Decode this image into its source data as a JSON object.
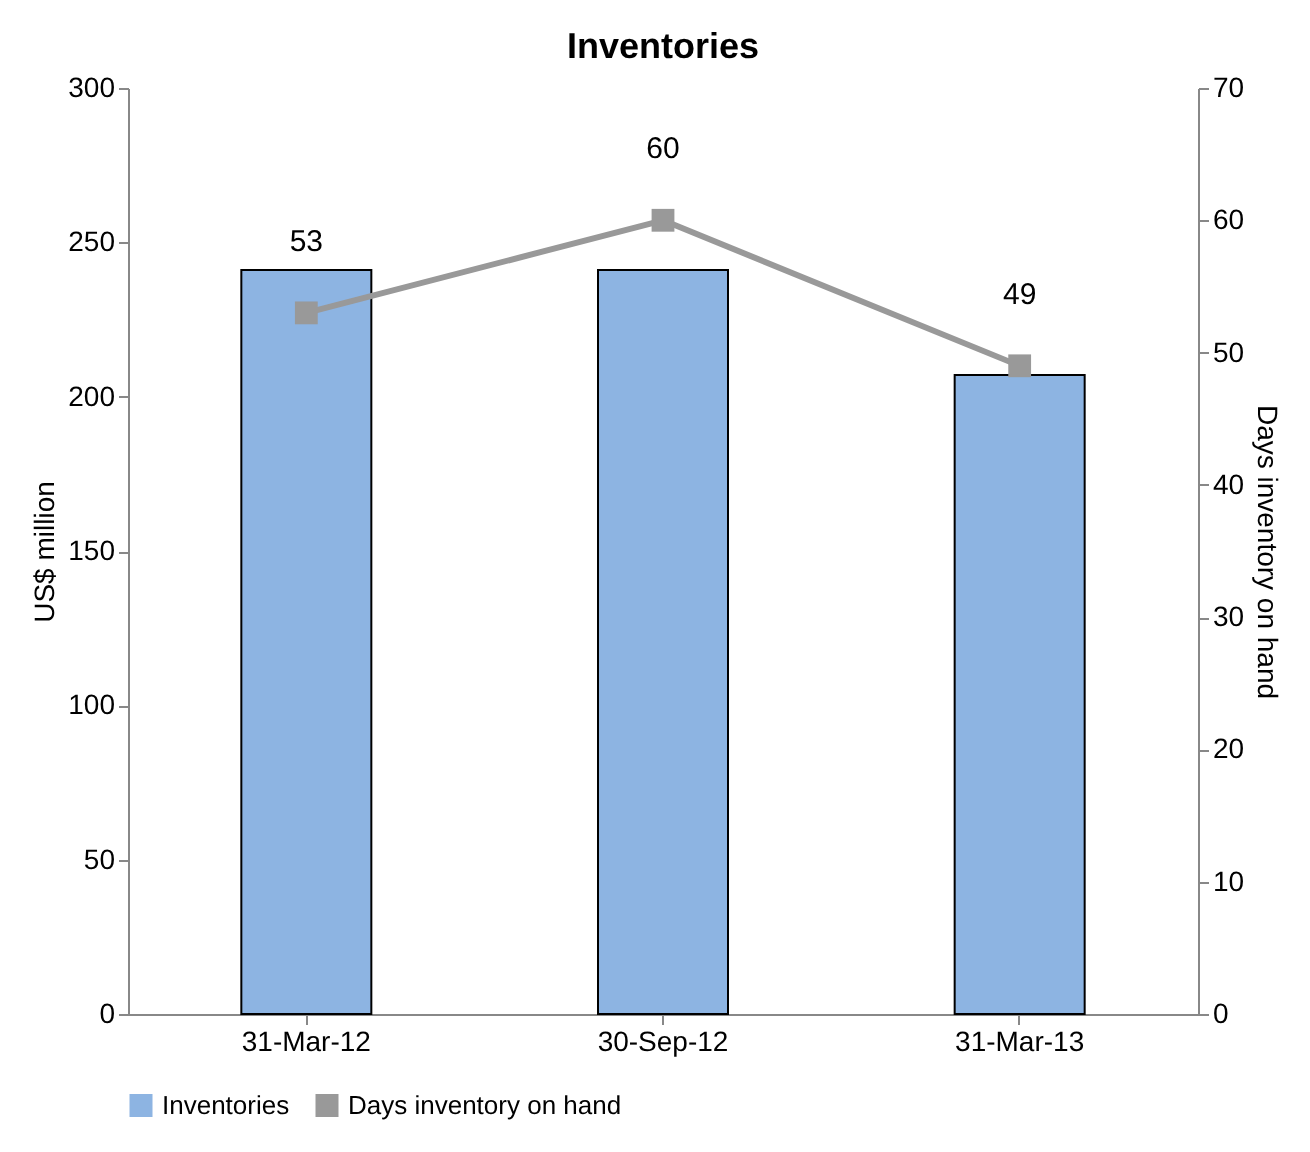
{
  "chart_data": {
    "type": "bar",
    "title": "Inventories",
    "ylabel": "US$ million",
    "y2label": "Days inventory on hand",
    "categories": [
      "31-Mar-12",
      "30-Sep-12",
      "31-Mar-13"
    ],
    "series": [
      {
        "name": "Inventories",
        "color": "#8db4e2",
        "values": [
          241,
          241,
          207
        ]
      },
      {
        "name": "Days inventory on hand",
        "type": "line",
        "axis": "y2",
        "color": "#999999",
        "marker": "square",
        "values": [
          53,
          60,
          49
        ],
        "value_labels": [
          "53",
          "60",
          "49"
        ]
      }
    ],
    "ylim": [
      0,
      300
    ],
    "yticks": [
      0,
      50,
      100,
      150,
      200,
      250,
      300
    ],
    "y2lim": [
      0,
      70
    ],
    "y2ticks": [
      0,
      10,
      20,
      30,
      40,
      50,
      60,
      70
    ],
    "grid": false,
    "legend": "bottom"
  }
}
